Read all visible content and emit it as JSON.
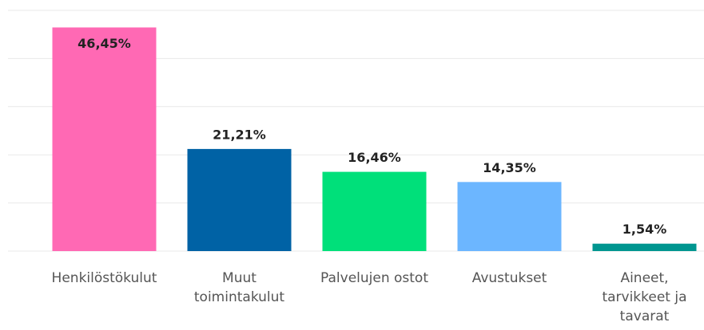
{
  "chart_data": {
    "type": "bar",
    "categories": [
      "Henkilöstökulut",
      "Muut toimintakulut",
      "Palvelujen ostot",
      "Avustukset",
      "Aineet, tarvikkeet ja tavarat"
    ],
    "values": [
      46.45,
      21.21,
      16.46,
      14.35,
      1.54
    ],
    "value_labels": [
      "46,45%",
      "21,21%",
      "16,46%",
      "14,35%",
      "1,54%"
    ],
    "colors": [
      "#ff69b4",
      "#0062a5",
      "#00e07a",
      "#6cb6ff",
      "#009690"
    ],
    "ylim": [
      0,
      50
    ],
    "yticks": [
      0,
      10,
      20,
      30,
      40,
      50
    ],
    "grid": true
  }
}
